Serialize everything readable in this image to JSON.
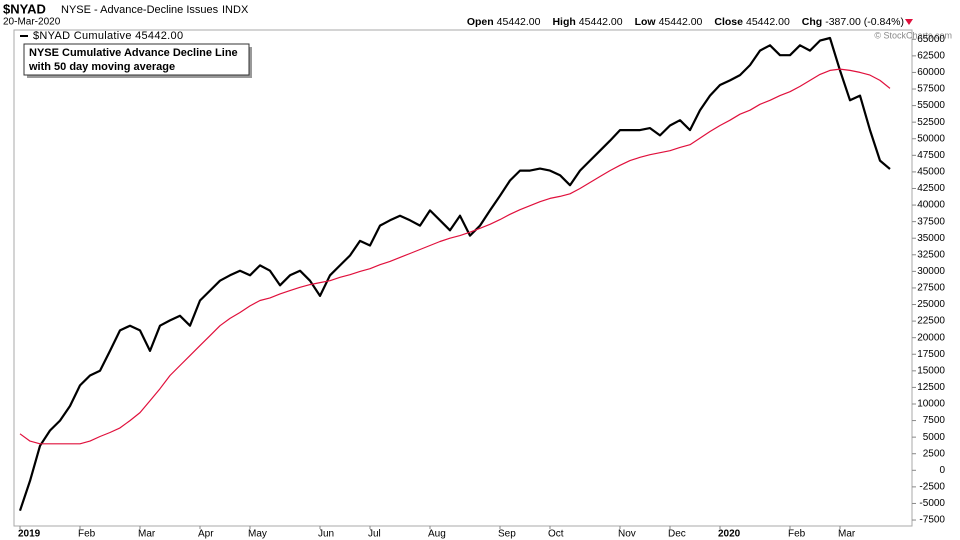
{
  "header": {
    "symbol": "$NYAD",
    "name": "NYSE - Advance-Decline Issues",
    "exchange": "INDX",
    "date": "20-Mar-2020",
    "quote": [
      {
        "label": "Open",
        "value": "45442.00"
      },
      {
        "label": "High",
        "value": "45442.00"
      },
      {
        "label": "Low",
        "value": "45442.00"
      },
      {
        "label": "Close",
        "value": "45442.00"
      },
      {
        "label": "Chg",
        "value": "-387.00 (-0.84%)"
      }
    ],
    "credit": "© StockCharts.com"
  },
  "chart_data": {
    "type": "line",
    "annotation": [
      "NYSE Cumulative Advance Decline Line",
      "with 50 day moving average"
    ],
    "categories": [
      "2019",
      null,
      null,
      null,
      null,
      null,
      "Feb",
      null,
      null,
      null,
      null,
      null,
      "Mar",
      null,
      null,
      null,
      null,
      null,
      "Apr",
      null,
      null,
      null,
      null,
      "May",
      null,
      null,
      null,
      null,
      null,
      null,
      "Jun",
      null,
      null,
      null,
      null,
      "Jul",
      null,
      null,
      null,
      null,
      null,
      "Aug",
      null,
      null,
      null,
      null,
      null,
      null,
      "Sep",
      null,
      null,
      null,
      null,
      "Oct",
      null,
      null,
      null,
      null,
      null,
      null,
      "Nov",
      null,
      null,
      null,
      null,
      "Dec",
      null,
      null,
      null,
      null,
      "2020",
      null,
      null,
      null,
      null,
      null,
      null,
      "Feb",
      null,
      null,
      null,
      null,
      "Mar",
      null,
      null,
      null,
      null,
      null
    ],
    "series": [
      {
        "name": "$NYAD Cumulative 45442.00",
        "color": "#000000",
        "values": [
          -6100,
          -1600,
          3700,
          6000,
          7500,
          9700,
          12800,
          14300,
          15000,
          18000,
          21100,
          21800,
          21100,
          18000,
          21800,
          22600,
          23300,
          21800,
          25600,
          27100,
          28600,
          29400,
          30100,
          29400,
          30900,
          30100,
          27900,
          29400,
          30100,
          28600,
          26300,
          29400,
          30900,
          32400,
          34600,
          33900,
          36900,
          37700,
          38400,
          37700,
          36900,
          39200,
          37700,
          36200,
          38400,
          35400,
          36900,
          39200,
          41400,
          43700,
          45200,
          45200,
          45500,
          45200,
          44500,
          43000,
          45200,
          46700,
          48200,
          49700,
          51300,
          51300,
          51300,
          51600,
          50500,
          52000,
          52800,
          51300,
          54300,
          56500,
          58100,
          58800,
          59600,
          61100,
          63300,
          64100,
          62600,
          62600,
          64100,
          63300,
          64800,
          65200,
          60300,
          55800,
          56500,
          51300,
          46700,
          45442
        ]
      },
      {
        "color": "#e0103c",
        "values": [
          5500,
          4400,
          4000,
          4000,
          4000,
          4000,
          4000,
          4400,
          5100,
          5700,
          6400,
          7500,
          8700,
          10500,
          12300,
          14300,
          15800,
          17300,
          18800,
          20300,
          21800,
          22900,
          23800,
          24800,
          25600,
          26000,
          26600,
          27100,
          27600,
          28000,
          28300,
          28600,
          29100,
          29500,
          30000,
          30400,
          31000,
          31500,
          32100,
          32700,
          33300,
          33900,
          34500,
          35000,
          35400,
          35900,
          36500,
          37100,
          37800,
          38600,
          39300,
          39900,
          40500,
          41000,
          41300,
          41700,
          42500,
          43400,
          44300,
          45200,
          46000,
          46700,
          47200,
          47600,
          47900,
          48200,
          48700,
          49100,
          50100,
          51100,
          52000,
          52800,
          53700,
          54300,
          55200,
          55800,
          56500,
          57100,
          57900,
          58800,
          59700,
          60300,
          60500,
          60300,
          60000,
          59600,
          58800,
          57600
        ]
      }
    ],
    "ylim": [
      -8400,
      66400
    ],
    "yticks": [
      -7500,
      -5000,
      -2500,
      0,
      2500,
      5000,
      7500,
      10000,
      12500,
      15000,
      17500,
      20000,
      22500,
      25000,
      27500,
      30000,
      32500,
      35000,
      37500,
      40000,
      42500,
      45000,
      47500,
      50000,
      52500,
      55000,
      57500,
      60000,
      62500,
      65000
    ],
    "grid": false
  }
}
